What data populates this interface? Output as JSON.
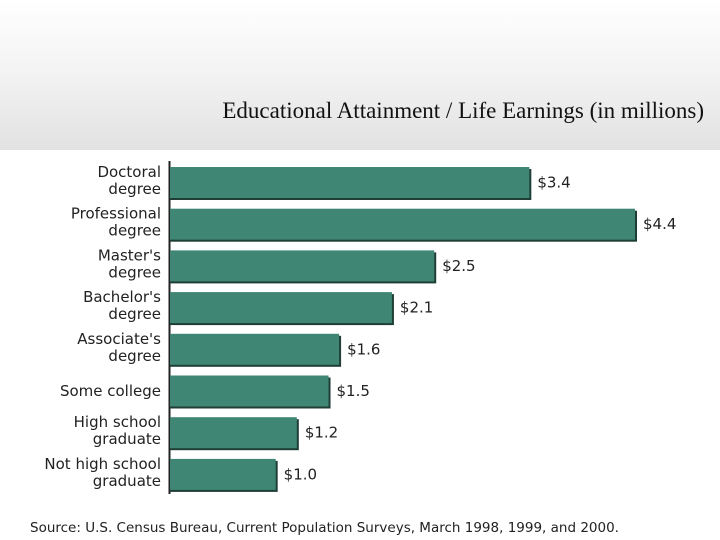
{
  "header": {
    "title": "Educational Attainment / Life Earnings (in millions)"
  },
  "chart_data": {
    "type": "bar",
    "orientation": "horizontal",
    "categories": [
      [
        "Doctoral",
        "degree"
      ],
      [
        "Professional",
        "degree"
      ],
      [
        "Master's",
        "degree"
      ],
      [
        "Bachelor's",
        "degree"
      ],
      [
        "Associate's",
        "degree"
      ],
      [
        "Some  college"
      ],
      [
        "High school",
        "graduate"
      ],
      [
        "Not high school",
        "graduate"
      ]
    ],
    "values": [
      3.4,
      4.4,
      2.5,
      2.1,
      1.6,
      1.5,
      1.2,
      1.0
    ],
    "value_labels": [
      "$3.4",
      "$4.4",
      "$2.5",
      "$2.1",
      "$1.6",
      "$1.5",
      "$1.2",
      "$1.0"
    ],
    "units": "millions of dollars",
    "xlim": [
      0,
      4.4
    ],
    "bar_color": "#3f8674",
    "bar_border_color": "#1f3f36",
    "grid": false,
    "legend": "none"
  },
  "footer": {
    "source": "Source: U.S. Census Bureau, Current Population Surveys, March 1998, 1999, and 2000."
  }
}
